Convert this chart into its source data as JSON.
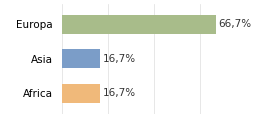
{
  "categories": [
    "Europa",
    "Asia",
    "Africa"
  ],
  "values": [
    66.7,
    16.7,
    16.7
  ],
  "bar_colors": [
    "#a8bc8a",
    "#7b9dc8",
    "#f0b97a"
  ],
  "labels": [
    "66,7%",
    "16,7%",
    "16,7%"
  ],
  "xlim": [
    0,
    80
  ],
  "background_color": "#ffffff",
  "bar_height": 0.55,
  "label_fontsize": 7.5,
  "tick_fontsize": 7.5,
  "figwidth": 2.8,
  "figheight": 1.2,
  "dpi": 100
}
